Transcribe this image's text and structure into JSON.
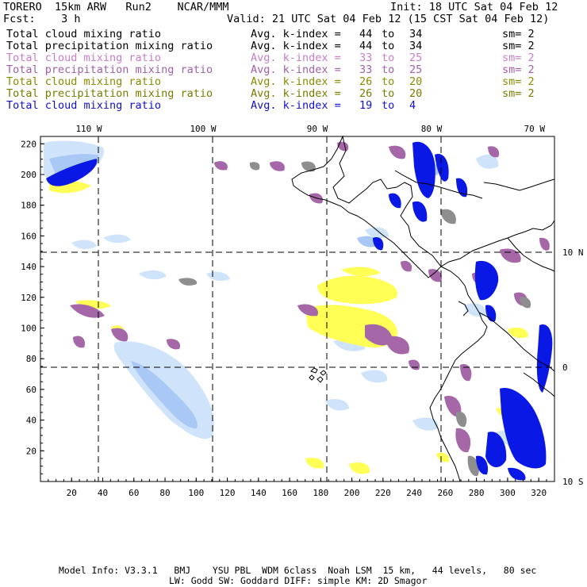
{
  "header": {
    "model_title": "TORERO  15km ARW   Run2    NCAR/MMM",
    "init_time": "Init: 18 UTC Sat 04 Feb 12",
    "forecast_label": "Fcst:    3 h",
    "valid_time": "Valid: 21 UTC Sat 04 Feb 12 (15 CST Sat 04 Feb 12)"
  },
  "legend": [
    {
      "field": "Total cloud mixing ratio",
      "k_label": "Avg. k-index =",
      "k_from": "44",
      "to": "to",
      "k_to": "34",
      "sm": "sm= 2",
      "color": "#000000"
    },
    {
      "field": "Total precipitation mixing ratio",
      "k_label": "Avg. k-index =",
      "k_from": "44",
      "to": "to",
      "k_to": "34",
      "sm": "sm= 2",
      "color": "#000000"
    },
    {
      "field": "Total cloud mixing ratio",
      "k_label": "Avg. k-index =",
      "k_from": "33",
      "to": "to",
      "k_to": "25",
      "sm": "sm= 2",
      "color": "#c77ec7"
    },
    {
      "field": "Total precipitation mixing ratio",
      "k_label": "Avg. k-index =",
      "k_from": "33",
      "to": "to",
      "k_to": "25",
      "sm": "sm= 2",
      "color": "#a060a8"
    },
    {
      "field": "Total cloud mixing ratio",
      "k_label": "Avg. k-index =",
      "k_from": "26",
      "to": "to",
      "k_to": "20",
      "sm": "sm= 2",
      "color": "#8a8a00"
    },
    {
      "field": "Total precipitation mixing ratio",
      "k_label": "Avg. k-index =",
      "k_from": "26",
      "to": "to",
      "k_to": "20",
      "sm": "sm= 2",
      "color": "#7a7a00"
    },
    {
      "field": "Total cloud mixing ratio",
      "k_label": "Avg. k-index =",
      "k_from": "19",
      "to": "to",
      "k_to": "4",
      "sm": "",
      "color": "#1010d0"
    }
  ],
  "map": {
    "top_lon_labels": [
      "110 W",
      "100 W",
      "90 W",
      "80 W",
      "70 W"
    ],
    "right_lat_labels": [
      "10 N",
      "0",
      "10 S"
    ],
    "left_grid_labels": [
      "220",
      "200",
      "180",
      "160",
      "140",
      "120",
      "100",
      "80",
      "60",
      "40",
      "20"
    ],
    "bottom_grid_labels": [
      "20",
      "40",
      "60",
      "80",
      "100",
      "120",
      "140",
      "160",
      "180",
      "200",
      "220",
      "240",
      "260",
      "280",
      "300",
      "320"
    ],
    "colors": {
      "light_blue": "#cfe4fa",
      "mid_blue": "#a9c8f5",
      "deep_blue": "#0a18e6",
      "yellow": "#ffff55",
      "purple": "#a567a8",
      "gray": "#8e8e8e"
    }
  },
  "footer": {
    "line1": "Model Info: V3.3.1   BMJ    YSU PBL  WDM 6class  Noah LSM  15 km,   44 levels,   80 sec",
    "line2": "LW: Godd SW: Goddard DIFF: simple KM: 2D Smagor"
  }
}
